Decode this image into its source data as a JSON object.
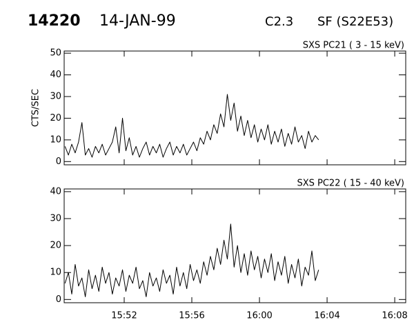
{
  "header": {
    "id": "14220",
    "date": "14-JAN-99",
    "class": "C2.3",
    "location": "SF (S22E53)"
  },
  "chart_data": [
    {
      "type": "line",
      "subtitle": "SXS PC21  (  3 - 15 keV)",
      "y_label": "CTS/SEC",
      "x": [
        948.5,
        948.7,
        948.9,
        949.1,
        949.3,
        949.5,
        949.7,
        949.9,
        950.1,
        950.3,
        950.5,
        950.7,
        950.9,
        951.1,
        951.3,
        951.5,
        951.7,
        951.9,
        952.1,
        952.3,
        952.5,
        952.7,
        952.9,
        953.1,
        953.3,
        953.5,
        953.7,
        953.9,
        954.1,
        954.3,
        954.5,
        954.7,
        954.9,
        955.1,
        955.3,
        955.5,
        955.7,
        955.9,
        956.1,
        956.3,
        956.5,
        956.7,
        956.9,
        957.1,
        957.3,
        957.5,
        957.7,
        957.9,
        958.1,
        958.3,
        958.5,
        958.7,
        958.9,
        959.1,
        959.3,
        959.5,
        959.7,
        959.9,
        960.1,
        960.3,
        960.5,
        960.7,
        960.9,
        961.1,
        961.3,
        961.5,
        961.7,
        961.9,
        962.1,
        962.3,
        962.5,
        962.7,
        962.9,
        963.1,
        963.3,
        963.5
      ],
      "series": [
        {
          "color": "#000000",
          "values": [
            7,
            3,
            8,
            4,
            9,
            18,
            3,
            6,
            2,
            7,
            4,
            8,
            3,
            6,
            9,
            16,
            4,
            20,
            5,
            11,
            3,
            7,
            2,
            6,
            9,
            3,
            7,
            4,
            8,
            2,
            6,
            9,
            3,
            7,
            4,
            8,
            3,
            6,
            9,
            5,
            11,
            8,
            14,
            10,
            17,
            13,
            22,
            16,
            31,
            19,
            27,
            14,
            21,
            12,
            19,
            11,
            17,
            9,
            15,
            10,
            17,
            8,
            14,
            9,
            15,
            7,
            13,
            8,
            16,
            9,
            12,
            6,
            14,
            9,
            12,
            10
          ]
        }
      ],
      "xlim": [
        948.45,
        968.65
      ],
      "ylim": [
        -1.5,
        51
      ],
      "xticks": [
        {
          "value": 952,
          "label": "15:52"
        },
        {
          "value": 956,
          "label": "15:56"
        },
        {
          "value": 960,
          "label": "16:00"
        },
        {
          "value": 964,
          "label": "16:04"
        },
        {
          "value": 968,
          "label": "16:08"
        }
      ],
      "yticks": [
        0,
        10,
        20,
        30,
        40,
        50
      ]
    },
    {
      "type": "line",
      "subtitle": "SXS PC22  ( 15 - 40 keV)",
      "x": [
        948.5,
        948.7,
        948.9,
        949.1,
        949.3,
        949.5,
        949.7,
        949.9,
        950.1,
        950.3,
        950.5,
        950.7,
        950.9,
        951.1,
        951.3,
        951.5,
        951.7,
        951.9,
        952.1,
        952.3,
        952.5,
        952.7,
        952.9,
        953.1,
        953.3,
        953.5,
        953.7,
        953.9,
        954.1,
        954.3,
        954.5,
        954.7,
        954.9,
        955.1,
        955.3,
        955.5,
        955.7,
        955.9,
        956.1,
        956.3,
        956.5,
        956.7,
        956.9,
        957.1,
        957.3,
        957.5,
        957.7,
        957.9,
        958.1,
        958.3,
        958.5,
        958.7,
        958.9,
        959.1,
        959.3,
        959.5,
        959.7,
        959.9,
        960.1,
        960.3,
        960.5,
        960.7,
        960.9,
        961.1,
        961.3,
        961.5,
        961.7,
        961.9,
        962.1,
        962.3,
        962.5,
        962.7,
        962.9,
        963.1,
        963.3,
        963.5
      ],
      "series": [
        {
          "color": "#000000",
          "values": [
            6,
            10,
            2,
            13,
            5,
            8,
            1,
            11,
            4,
            9,
            3,
            12,
            6,
            10,
            2,
            8,
            5,
            11,
            3,
            9,
            6,
            12,
            4,
            7,
            1,
            10,
            5,
            8,
            3,
            11,
            6,
            9,
            2,
            12,
            5,
            10,
            4,
            13,
            7,
            11,
            6,
            14,
            9,
            16,
            11,
            19,
            13,
            22,
            15,
            28,
            12,
            20,
            10,
            17,
            9,
            18,
            11,
            16,
            8,
            15,
            10,
            17,
            7,
            14,
            9,
            16,
            6,
            13,
            8,
            15,
            5,
            12,
            9,
            18,
            7,
            11
          ]
        }
      ],
      "xlim": [
        948.45,
        968.65
      ],
      "ylim": [
        -1.2,
        41
      ],
      "xticks": [
        {
          "value": 952,
          "label": "15:52"
        },
        {
          "value": 956,
          "label": "15:56"
        },
        {
          "value": 960,
          "label": "16:00"
        },
        {
          "value": 964,
          "label": "16:04"
        },
        {
          "value": 968,
          "label": "16:08"
        }
      ],
      "yticks": [
        0,
        10,
        20,
        30,
        40
      ]
    }
  ]
}
